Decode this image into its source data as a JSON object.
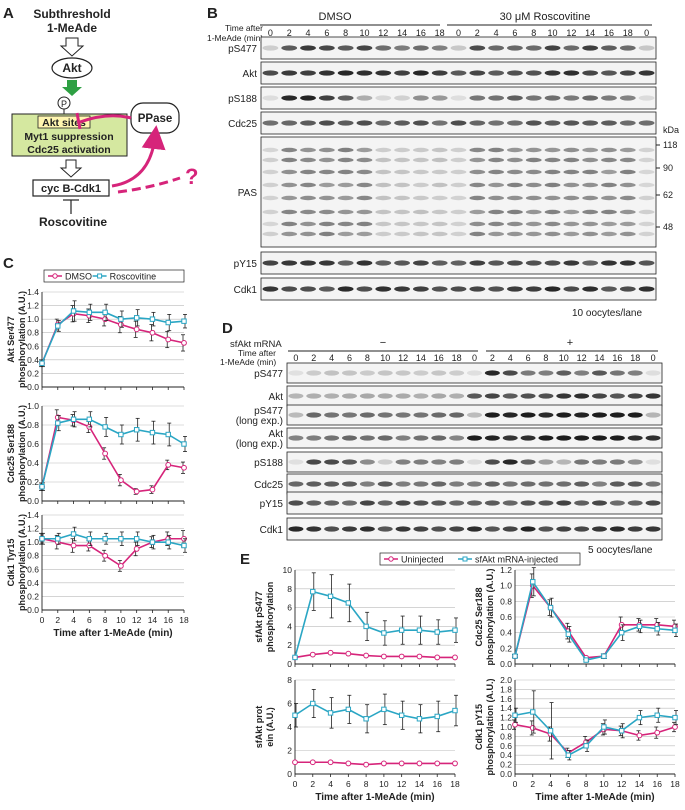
{
  "panels": {
    "A": {
      "letter": "A",
      "subthreshold": "Subthreshold",
      "mead": "1-MeAde",
      "akt": "Akt",
      "p": "P",
      "akt_sites": "Akt sites",
      "myt1": "Myt1 suppression",
      "cdc25": "Cdc25 activation",
      "ppase": "PPase",
      "cdk1": "cyc B-Cdk1",
      "roscovitine": "Roscovitine",
      "question": "?"
    },
    "B": {
      "letter": "B",
      "group1": "DMSO",
      "group2": "30 μM Roscovitine",
      "time_label_1": "Time after",
      "time_label_2": "1-MeAde (min)",
      "times": [
        "0",
        "2",
        "4",
        "6",
        "8",
        "10",
        "12",
        "14",
        "16",
        "18",
        "0",
        "2",
        "4",
        "6",
        "8",
        "10",
        "12",
        "14",
        "16",
        "18",
        "0"
      ],
      "rows": [
        "pS477",
        "Akt",
        "pS188",
        "Cdc25",
        "PAS",
        "pY15",
        "Cdk1"
      ],
      "kda": "kDa",
      "markers": [
        "118",
        "90",
        "62",
        "48"
      ],
      "footer": "10 oocytes/lane"
    },
    "D": {
      "letter": "D",
      "sfakt": "sfAkt mRNA",
      "minus": "−",
      "plus": "+",
      "time_label_1": "Time after",
      "time_label_2": "1-MeAde (min)",
      "times": [
        "0",
        "2",
        "4",
        "6",
        "8",
        "10",
        "12",
        "14",
        "16",
        "18",
        "0",
        "2",
        "4",
        "6",
        "8",
        "10",
        "12",
        "14",
        "16",
        "18",
        "0"
      ],
      "rows": [
        "pS477",
        "Akt",
        "pS477",
        "(long exp.)",
        "Akt",
        "(long exp.)",
        "pS188",
        "Cdc25",
        "pY15",
        "Cdk1"
      ],
      "footer": "5 oocytes/lane"
    },
    "C": {
      "letter": "C"
    },
    "E": {
      "letter": "E"
    }
  },
  "chart_data": [
    {
      "id": "C1",
      "type": "line",
      "ylabel": "Akt Ser477 phosphorylation (A.U.)",
      "x": [
        0,
        2,
        4,
        6,
        8,
        10,
        12,
        14,
        16,
        18
      ],
      "ylim": [
        0,
        1.4
      ],
      "yticks": [
        0,
        0.2,
        0.4,
        0.6,
        0.8,
        1.0,
        1.2,
        1.4
      ],
      "legend": [
        "DMSO",
        "Roscovitine"
      ],
      "series": [
        {
          "name": "DMSO",
          "color": "#d6247a",
          "values": [
            0.35,
            0.92,
            1.08,
            1.05,
            1.0,
            0.92,
            0.85,
            0.8,
            0.7,
            0.65
          ],
          "err": [
            0.05,
            0.08,
            0.12,
            0.1,
            0.1,
            0.12,
            0.12,
            0.12,
            0.12,
            0.12
          ]
        },
        {
          "name": "Roscovitine",
          "color": "#2aa6c4",
          "values": [
            0.35,
            0.9,
            1.12,
            1.1,
            1.1,
            1.0,
            1.02,
            1.0,
            0.95,
            0.97
          ],
          "err": [
            0.05,
            0.08,
            0.15,
            0.12,
            0.12,
            0.12,
            0.12,
            0.1,
            0.12,
            0.1
          ]
        }
      ]
    },
    {
      "id": "C2",
      "type": "line",
      "ylabel": "Cdc25 Ser188 phosphorylation (A.U.)",
      "x": [
        0,
        2,
        4,
        6,
        8,
        10,
        12,
        14,
        16,
        18
      ],
      "ylim": [
        0,
        1.0
      ],
      "yticks": [
        0,
        0.2,
        0.4,
        0.6,
        0.8,
        1.0
      ],
      "series": [
        {
          "name": "DMSO",
          "color": "#d6247a",
          "values": [
            0.15,
            0.88,
            0.85,
            0.78,
            0.5,
            0.22,
            0.1,
            0.12,
            0.38,
            0.35
          ],
          "err": [
            0.04,
            0.08,
            0.06,
            0.06,
            0.06,
            0.06,
            0.03,
            0.04,
            0.05,
            0.06
          ]
        },
        {
          "name": "Roscovitine",
          "color": "#2aa6c4",
          "values": [
            0.15,
            0.82,
            0.86,
            0.86,
            0.78,
            0.7,
            0.75,
            0.72,
            0.7,
            0.6
          ],
          "err": [
            0.04,
            0.08,
            0.08,
            0.08,
            0.1,
            0.1,
            0.12,
            0.12,
            0.12,
            0.08
          ]
        }
      ]
    },
    {
      "id": "C3",
      "type": "line",
      "ylabel": "Cdk1 Tyr15 phosphorylation (A.U.)",
      "x": [
        0,
        2,
        4,
        6,
        8,
        10,
        12,
        14,
        16,
        18
      ],
      "ylim": [
        0,
        1.4
      ],
      "yticks": [
        0,
        0.2,
        0.4,
        0.6,
        0.8,
        1.0,
        1.2,
        1.4
      ],
      "xlabel": "Time after 1-MeAde (min)",
      "series": [
        {
          "name": "DMSO",
          "color": "#d6247a",
          "values": [
            1.05,
            1.0,
            0.95,
            0.95,
            0.8,
            0.65,
            0.9,
            1.0,
            1.05,
            1.05
          ],
          "err": [
            0.08,
            0.1,
            0.1,
            0.08,
            0.08,
            0.08,
            0.1,
            0.08,
            0.1,
            0.12
          ]
        },
        {
          "name": "Roscovitine",
          "color": "#2aa6c4",
          "values": [
            1.05,
            1.05,
            1.12,
            1.05,
            1.05,
            1.05,
            1.05,
            1.0,
            1.0,
            0.95
          ],
          "err": [
            0.08,
            0.08,
            0.1,
            0.1,
            0.08,
            0.1,
            0.1,
            0.1,
            0.1,
            0.1
          ]
        }
      ]
    },
    {
      "id": "E1",
      "type": "line",
      "ylabel": "sfAkt pS477 phosphorylation",
      "x": [
        0,
        2,
        4,
        6,
        8,
        10,
        12,
        14,
        16,
        18
      ],
      "ylim": [
        0,
        10
      ],
      "yticks": [
        0,
        2,
        4,
        6,
        8,
        10
      ],
      "legend": [
        "Uninjected",
        "sfAkt mRNA-injected"
      ],
      "series": [
        {
          "name": "Uninjected",
          "color": "#d6247a",
          "values": [
            0.7,
            1.0,
            1.2,
            1.1,
            0.9,
            0.8,
            0.8,
            0.8,
            0.7,
            0.7
          ],
          "err": [
            0,
            0,
            0,
            0,
            0,
            0,
            0,
            0,
            0,
            0
          ]
        },
        {
          "name": "sfAkt mRNA-injected",
          "color": "#2aa6c4",
          "values": [
            0.7,
            7.7,
            7.2,
            6.5,
            4.0,
            3.3,
            3.6,
            3.6,
            3.4,
            3.6
          ],
          "err": [
            0,
            2.0,
            2.3,
            2.0,
            1.5,
            1.3,
            1.5,
            1.5,
            1.3,
            1.3
          ]
        }
      ]
    },
    {
      "id": "E2",
      "type": "line",
      "ylabel": "sfAkt protein (A.U.)",
      "x": [
        0,
        2,
        4,
        6,
        8,
        10,
        12,
        14,
        16,
        18
      ],
      "ylim": [
        0,
        8
      ],
      "yticks": [
        0,
        2,
        4,
        6,
        8
      ],
      "xlabel": "Time after 1-MeAde (min)",
      "series": [
        {
          "name": "Uninjected",
          "color": "#d6247a",
          "values": [
            1.0,
            1.0,
            1.0,
            0.9,
            0.8,
            0.9,
            0.9,
            0.9,
            0.9,
            0.9
          ],
          "err": [
            0,
            0,
            0,
            0,
            0,
            0,
            0,
            0,
            0,
            0
          ]
        },
        {
          "name": "sfAkt mRNA-injected",
          "color": "#2aa6c4",
          "values": [
            5.0,
            6.0,
            5.2,
            5.5,
            4.7,
            5.5,
            5.0,
            4.7,
            4.9,
            5.4
          ],
          "err": [
            1.0,
            1.2,
            1.3,
            1.2,
            1.2,
            1.3,
            1.2,
            1.2,
            1.3,
            1.3
          ]
        }
      ]
    },
    {
      "id": "E3",
      "type": "line",
      "ylabel": "Cdc25 Ser188 phosphorylation (A.U.)",
      "x": [
        0,
        2,
        4,
        6,
        8,
        10,
        12,
        14,
        16,
        18
      ],
      "ylim": [
        0,
        1.2
      ],
      "yticks": [
        0,
        0.2,
        0.4,
        0.6,
        0.8,
        1.0,
        1.2
      ],
      "series": [
        {
          "name": "Uninjected",
          "color": "#d6247a",
          "values": [
            0.1,
            1.0,
            0.72,
            0.42,
            0.08,
            0.1,
            0.5,
            0.5,
            0.5,
            0.48
          ],
          "err": [
            0.02,
            0.15,
            0.1,
            0.1,
            0.02,
            0.03,
            0.1,
            0.08,
            0.08,
            0.08
          ]
        },
        {
          "name": "sfAkt mRNA-injected",
          "color": "#2aa6c4",
          "values": [
            0.1,
            1.05,
            0.72,
            0.38,
            0.05,
            0.1,
            0.4,
            0.48,
            0.45,
            0.43
          ],
          "err": [
            0.02,
            0.18,
            0.12,
            0.1,
            0.02,
            0.03,
            0.1,
            0.08,
            0.08,
            0.08
          ]
        }
      ]
    },
    {
      "id": "E4",
      "type": "line",
      "ylabel": "Cdk1 pY15 phosphorylation (A.U.)",
      "x": [
        0,
        2,
        4,
        6,
        8,
        10,
        12,
        14,
        16,
        18
      ],
      "ylim": [
        0,
        2.0
      ],
      "yticks": [
        0,
        0.2,
        0.4,
        0.6,
        0.8,
        1.0,
        1.2,
        1.4,
        1.6,
        1.8,
        2.0
      ],
      "xlabel": "Time after 1-MeAde (min)",
      "series": [
        {
          "name": "Uninjected",
          "color": "#d6247a",
          "values": [
            1.05,
            0.98,
            0.85,
            0.45,
            0.68,
            0.95,
            0.92,
            0.82,
            0.88,
            1.0
          ],
          "err": [
            0.1,
            0.15,
            0.15,
            0.1,
            0.12,
            0.12,
            0.1,
            0.1,
            0.12,
            0.1
          ]
        },
        {
          "name": "sfAkt mRNA-injected",
          "color": "#2aa6c4",
          "values": [
            1.25,
            1.32,
            0.92,
            0.4,
            0.6,
            1.0,
            0.92,
            1.2,
            1.25,
            1.2
          ],
          "err": [
            0.15,
            0.45,
            0.6,
            0.1,
            0.12,
            0.15,
            0.15,
            0.15,
            0.15,
            0.15
          ]
        }
      ]
    }
  ]
}
